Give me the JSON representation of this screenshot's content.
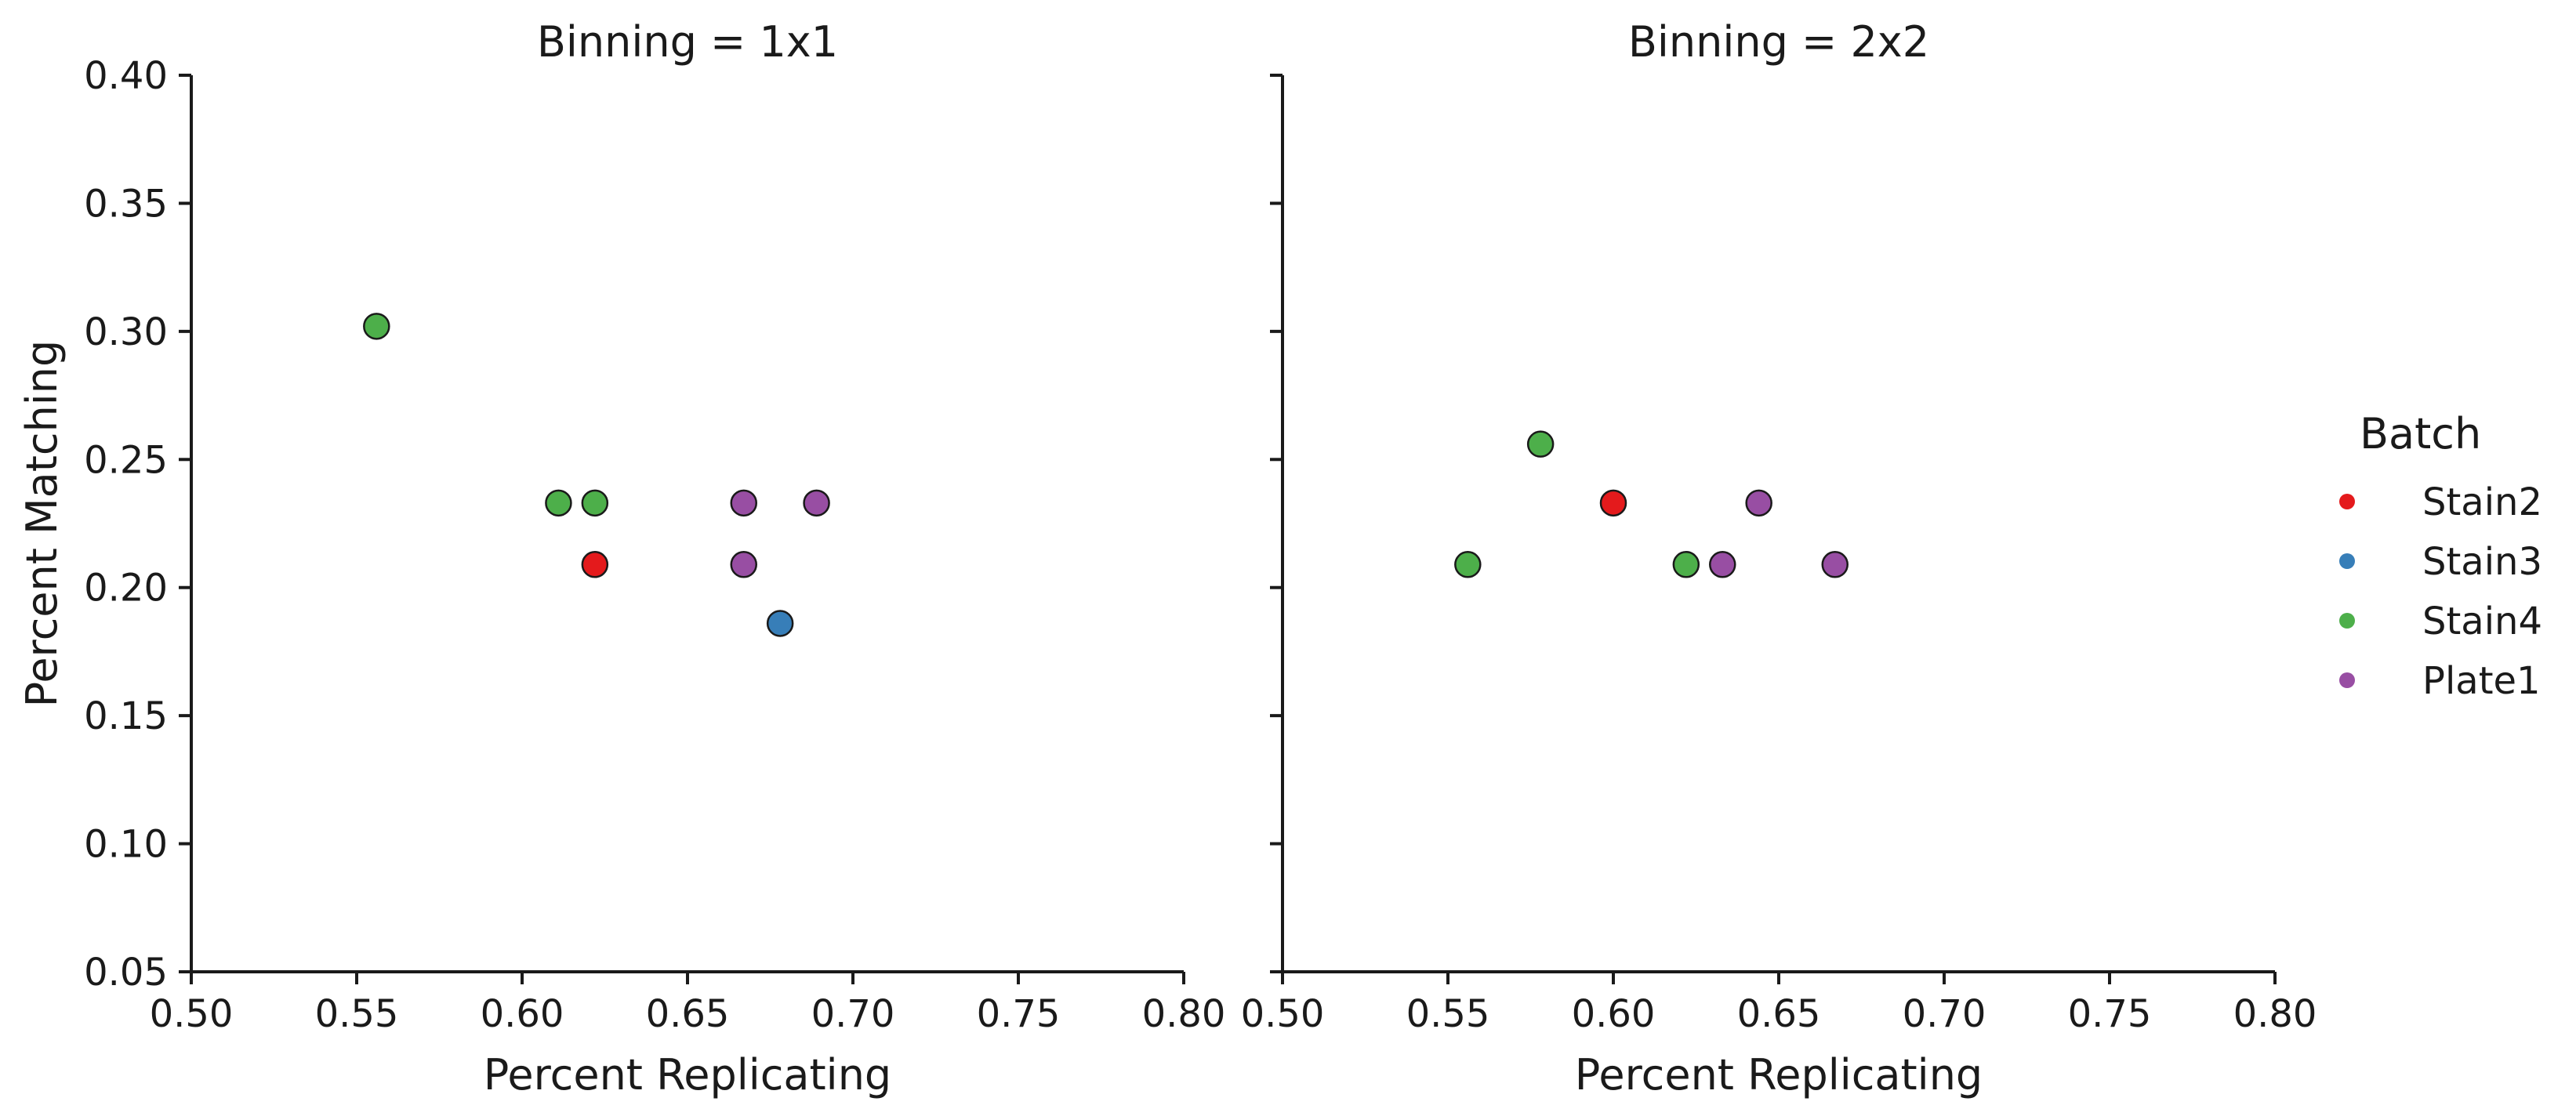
{
  "chart_data": {
    "type": "scatter",
    "xlabel": "Percent Replicating",
    "ylabel": "Percent Matching",
    "xlim": [
      0.5,
      0.8
    ],
    "ylim": [
      0.05,
      0.4
    ],
    "xticks": [
      "0.50",
      "0.55",
      "0.60",
      "0.65",
      "0.70",
      "0.75",
      "0.80"
    ],
    "yticks": [
      "0.05",
      "0.10",
      "0.15",
      "0.20",
      "0.25",
      "0.30",
      "0.35",
      "0.40"
    ],
    "sharey": true,
    "legend": {
      "title": "Batch",
      "placement": "right",
      "entries": [
        {
          "name": "Stain2",
          "color": "#e41a1c"
        },
        {
          "name": "Stain3",
          "color": "#377eb8"
        },
        {
          "name": "Stain4",
          "color": "#4daf4a"
        },
        {
          "name": "Plate1",
          "color": "#984ea3"
        }
      ]
    },
    "panels": [
      {
        "title": "Binning = 1x1",
        "points": [
          {
            "x": 0.556,
            "y": 0.302,
            "batch": "Stain4"
          },
          {
            "x": 0.611,
            "y": 0.233,
            "batch": "Stain4"
          },
          {
            "x": 0.622,
            "y": 0.233,
            "batch": "Stain4"
          },
          {
            "x": 0.622,
            "y": 0.209,
            "batch": "Stain2"
          },
          {
            "x": 0.667,
            "y": 0.233,
            "batch": "Plate1"
          },
          {
            "x": 0.689,
            "y": 0.233,
            "batch": "Plate1"
          },
          {
            "x": 0.667,
            "y": 0.209,
            "batch": "Plate1"
          },
          {
            "x": 0.678,
            "y": 0.186,
            "batch": "Stain3"
          }
        ]
      },
      {
        "title": "Binning = 2x2",
        "points": [
          {
            "x": 0.556,
            "y": 0.209,
            "batch": "Stain4"
          },
          {
            "x": 0.578,
            "y": 0.256,
            "batch": "Stain4"
          },
          {
            "x": 0.6,
            "y": 0.233,
            "batch": "Stain2"
          },
          {
            "x": 0.622,
            "y": 0.209,
            "batch": "Stain4"
          },
          {
            "x": 0.633,
            "y": 0.209,
            "batch": "Plate1"
          },
          {
            "x": 0.644,
            "y": 0.233,
            "batch": "Plate1"
          },
          {
            "x": 0.667,
            "y": 0.209,
            "batch": "Plate1"
          }
        ]
      }
    ]
  }
}
